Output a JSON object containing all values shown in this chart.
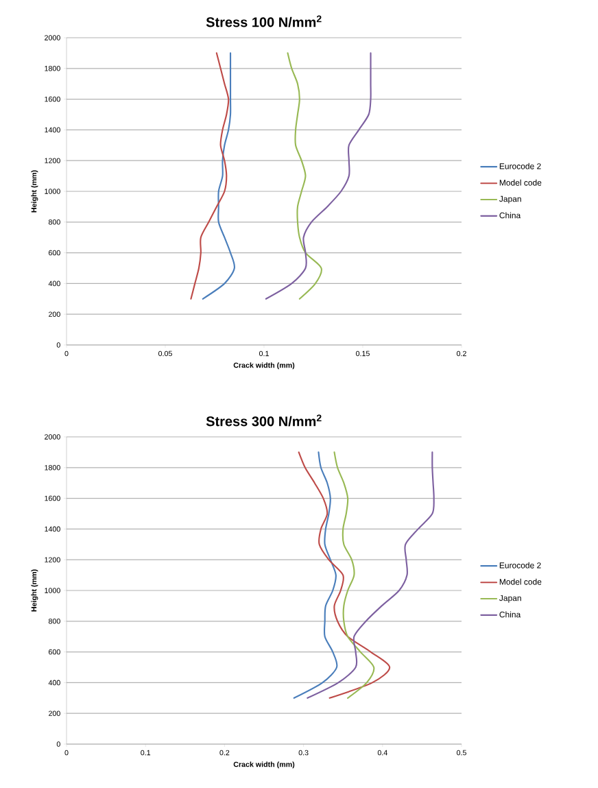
{
  "chart_data": [
    {
      "type": "line",
      "title": "Stress 100 N/mm$^{2}$",
      "xlabel": "Crack width (mm)",
      "ylabel": "Height (mm)",
      "xlim": [
        0,
        0.2
      ],
      "xticks": [
        0,
        0.05,
        0.1,
        0.15,
        0.2
      ],
      "ylim": [
        0,
        2000
      ],
      "yticks": [
        0,
        200,
        400,
        600,
        800,
        1000,
        1200,
        1400,
        1600,
        1800,
        2000
      ],
      "grid": "y",
      "legend": "right",
      "marker": "none",
      "line_style": "solid",
      "series": [
        {
          "name": "Eurocode 2",
          "color": "#4a7ebb",
          "x": [
            0.069,
            0.08,
            0.085,
            0.083,
            0.08,
            0.077,
            0.077,
            0.077,
            0.079,
            0.079,
            0.08,
            0.082,
            0.083,
            0.083,
            0.083,
            0.083,
            0.083
          ],
          "values": [
            300,
            400,
            500,
            600,
            700,
            800,
            900,
            1000,
            1100,
            1200,
            1300,
            1400,
            1500,
            1600,
            1700,
            1800,
            1900
          ]
        },
        {
          "name": "Model code",
          "color": "#be4b48",
          "x": [
            0.063,
            0.065,
            0.067,
            0.068,
            0.068,
            0.072,
            0.076,
            0.08,
            0.081,
            0.08,
            0.078,
            0.079,
            0.081,
            0.082,
            0.08,
            0.078,
            0.076
          ],
          "values": [
            300,
            400,
            500,
            600,
            700,
            800,
            900,
            1000,
            1100,
            1200,
            1300,
            1400,
            1500,
            1600,
            1700,
            1800,
            1900
          ]
        },
        {
          "name": "Japan",
          "color": "#98b954",
          "x": [
            0.118,
            0.126,
            0.129,
            0.121,
            0.118,
            0.117,
            0.117,
            0.119,
            0.121,
            0.119,
            0.116,
            0.116,
            0.117,
            0.118,
            0.117,
            0.114,
            0.112
          ],
          "values": [
            300,
            400,
            500,
            600,
            700,
            800,
            900,
            1000,
            1100,
            1200,
            1300,
            1400,
            1500,
            1600,
            1700,
            1800,
            1900
          ]
        },
        {
          "name": "China",
          "color": "#7d60a0",
          "x": [
            0.101,
            0.114,
            0.121,
            0.121,
            0.12,
            0.124,
            0.132,
            0.139,
            0.143,
            0.143,
            0.143,
            0.148,
            0.153,
            0.154,
            0.154,
            0.154,
            0.154
          ],
          "values": [
            300,
            400,
            500,
            600,
            700,
            800,
            900,
            1000,
            1100,
            1200,
            1300,
            1400,
            1500,
            1600,
            1700,
            1800,
            1900
          ]
        }
      ]
    },
    {
      "type": "line",
      "title": "Stress 300 N/mm$^{2}$",
      "xlabel": "Crack width (mm)",
      "ylabel": "Height (mm)",
      "xlim": [
        0,
        0.5
      ],
      "xticks": [
        0,
        0.1,
        0.2,
        0.3,
        0.4,
        0.5
      ],
      "ylim": [
        0,
        2000
      ],
      "yticks": [
        0,
        200,
        400,
        600,
        800,
        1000,
        1200,
        1400,
        1600,
        1800,
        2000
      ],
      "grid": "y",
      "legend": "right",
      "marker": "none",
      "line_style": "solid",
      "series": [
        {
          "name": "Eurocode 2",
          "color": "#4a7ebb",
          "x": [
            0.288,
            0.324,
            0.342,
            0.337,
            0.327,
            0.327,
            0.328,
            0.337,
            0.341,
            0.334,
            0.327,
            0.328,
            0.332,
            0.334,
            0.33,
            0.322,
            0.319
          ],
          "values": [
            300,
            400,
            500,
            600,
            700,
            800,
            900,
            1000,
            1100,
            1200,
            1300,
            1400,
            1500,
            1600,
            1700,
            1800,
            1900
          ]
        },
        {
          "name": "Model code",
          "color": "#be4b48",
          "x": [
            0.333,
            0.387,
            0.409,
            0.385,
            0.356,
            0.343,
            0.339,
            0.347,
            0.35,
            0.332,
            0.32,
            0.322,
            0.33,
            0.325,
            0.314,
            0.302,
            0.294
          ],
          "values": [
            300,
            400,
            500,
            600,
            700,
            800,
            900,
            1000,
            1100,
            1200,
            1300,
            1400,
            1500,
            1600,
            1700,
            1800,
            1900
          ]
        },
        {
          "name": "Japan",
          "color": "#98b954",
          "x": [
            0.356,
            0.38,
            0.389,
            0.372,
            0.356,
            0.351,
            0.351,
            0.356,
            0.364,
            0.361,
            0.351,
            0.35,
            0.354,
            0.356,
            0.351,
            0.343,
            0.339
          ],
          "values": [
            300,
            400,
            500,
            600,
            700,
            800,
            900,
            1000,
            1100,
            1200,
            1300,
            1400,
            1500,
            1600,
            1700,
            1800,
            1900
          ]
        },
        {
          "name": "China",
          "color": "#7d60a0",
          "x": [
            0.305,
            0.344,
            0.366,
            0.366,
            0.364,
            0.379,
            0.399,
            0.421,
            0.431,
            0.43,
            0.429,
            0.445,
            0.463,
            0.465,
            0.464,
            0.463,
            0.463
          ],
          "values": [
            300,
            400,
            500,
            600,
            700,
            800,
            900,
            1000,
            1100,
            1200,
            1300,
            1400,
            1500,
            1600,
            1700,
            1800,
            1900
          ]
        }
      ]
    }
  ]
}
